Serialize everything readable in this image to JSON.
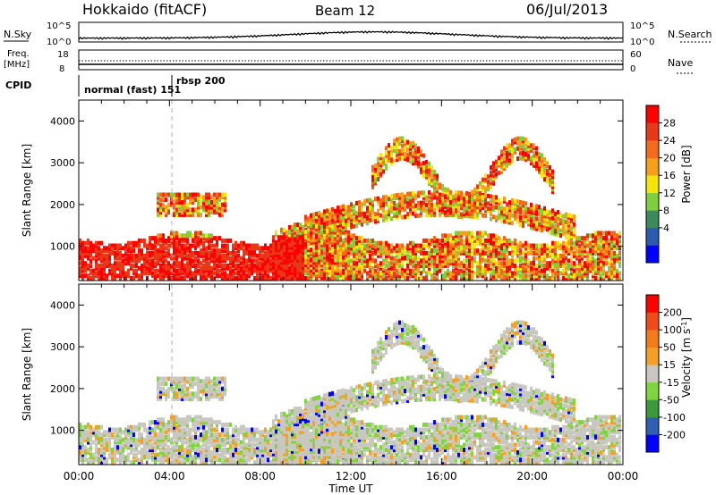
{
  "header": {
    "title": "Hokkaido (fitACF)",
    "beam": "Beam 12",
    "date": "06/Jul/2013"
  },
  "status_panels": {
    "nsky_label": "N.Sky",
    "nsky_ticks": [
      "10^5",
      "10^0"
    ],
    "nsearch_label": "N.Search",
    "freq_label_line1": "Freq.",
    "freq_label_line2": "[MHz]",
    "freq_ticks": [
      "18",
      "8"
    ],
    "nave_label": "Nave",
    "nave_ticks": [
      "60",
      "0"
    ],
    "cpid_label": "CPID",
    "cpid_mode1": "normal (fast) 151",
    "cpid_mode2": "rbsp 200"
  },
  "time_axis": {
    "label": "Time UT",
    "ticks": [
      "00:00",
      "04:00",
      "08:00",
      "12:00",
      "16:00",
      "20:00",
      "00:00"
    ]
  },
  "chart_data": [
    {
      "type": "heatmap",
      "name": "power",
      "xlabel": "Time UT",
      "ylabel": "Slant Range [km]",
      "x_range_hours": [
        0,
        24
      ],
      "ylim": [
        180,
        4500
      ],
      "yticks": [
        1000,
        2000,
        3000,
        4000
      ],
      "colorbar": {
        "label": "Power [dB]",
        "ticks": [
          "28",
          "24",
          "20",
          "16",
          "12",
          "8",
          "4"
        ],
        "colors": [
          "#0000ff",
          "#2a5bb0",
          "#3d8a5a",
          "#7fcf3c",
          "#f5e60a",
          "#f5a018",
          "#f46a18",
          "#e83818",
          "#ff0000"
        ]
      }
    },
    {
      "type": "heatmap",
      "name": "velocity",
      "xlabel": "Time UT",
      "ylabel": "Slant Range [km]",
      "x_range_hours": [
        0,
        24
      ],
      "ylim": [
        180,
        4500
      ],
      "yticks": [
        1000,
        2000,
        3000,
        4000
      ],
      "colorbar": {
        "label": "Velocity [m s^-1]",
        "ticks": [
          "200",
          "100",
          "50",
          "15",
          "-15",
          "-50",
          "-100",
          "-200"
        ],
        "colors": [
          "#0000ff",
          "#2d5fb4",
          "#3a9a3a",
          "#7fd63c",
          "#c8c8c0",
          "#f5a020",
          "#f57a18",
          "#f04a18",
          "#ff0000"
        ]
      }
    }
  ],
  "colors": {
    "accent_red": "#ff0000",
    "accent_orange": "#f5a020",
    "accent_blue": "#2040c0",
    "grey_ground": "#c8c8c0"
  }
}
